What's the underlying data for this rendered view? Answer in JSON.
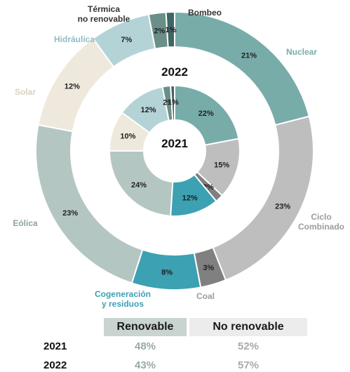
{
  "chart_data": {
    "type": "donut",
    "rings": [
      {
        "year": "2022",
        "ring": "outer",
        "slices": [
          {
            "label": "Nuclear",
            "value": 21,
            "value_label": "21%",
            "color": "#78aca9",
            "label_color": "#78aca9"
          },
          {
            "label": "Ciclo Combinado",
            "value": 23,
            "value_label": "23%",
            "color": "#bebebe",
            "label_color": "#9c9c9c"
          },
          {
            "label": "Coal",
            "value": 3,
            "value_label": "3%",
            "color": "#808080",
            "label_color": "#9c9c9c"
          },
          {
            "label": "Cogeneración y residuos",
            "value": 8,
            "value_label": "8%",
            "color": "#3ba1b3",
            "label_color": "#3ba1b3"
          },
          {
            "label": "Eólica",
            "value": 23,
            "value_label": "23%",
            "color": "#b4c6c2",
            "label_color": "#8ba49e"
          },
          {
            "label": "Solar",
            "value": 12,
            "value_label": "12%",
            "color": "#eee9dc",
            "label_color": "#d9d2bd"
          },
          {
            "label": "Hidráulica",
            "value": 7,
            "value_label": "7%",
            "color": "#b4d3d7",
            "label_color": "#8fbcc3"
          },
          {
            "label": "Térmica no renovable",
            "value": 2,
            "value_label": "2%",
            "color": "#6a8f88",
            "label_color": "#333333"
          },
          {
            "label": "Bombeo",
            "value": 1,
            "value_label": "1%",
            "color": "#3f6666",
            "label_color": "#333333"
          }
        ]
      },
      {
        "year": "2021",
        "ring": "inner",
        "slices": [
          {
            "label": "Nuclear",
            "value": 22,
            "value_label": "22%",
            "color": "#78aca9"
          },
          {
            "label": "Ciclo Combinado",
            "value": 15,
            "value_label": "15%",
            "color": "#bebebe"
          },
          {
            "label": "Coal",
            "value": 2,
            "value_label": "2%",
            "color": "#808080"
          },
          {
            "label": "Cogeneración y residuos",
            "value": 12,
            "value_label": "12%",
            "color": "#3ba1b3"
          },
          {
            "label": "Eólica",
            "value": 24,
            "value_label": "24%",
            "color": "#b4c6c2"
          },
          {
            "label": "Solar",
            "value": 10,
            "value_label": "10%",
            "color": "#eee9dc"
          },
          {
            "label": "Hidráulica",
            "value": 12,
            "value_label": "12%",
            "color": "#b4d3d7"
          },
          {
            "label": "Térmica no renovable",
            "value": 2,
            "value_label": "2%",
            "color": "#6a8f88"
          },
          {
            "label": "Bombeo",
            "value": 1,
            "value_label": "1%",
            "color": "#3f6666"
          }
        ]
      }
    ]
  },
  "summary": {
    "headers": [
      "Renovable",
      "No renovable"
    ],
    "rows": [
      {
        "year": "2021",
        "renovable": "48%",
        "no_renovable": "52%"
      },
      {
        "year": "2022",
        "renovable": "43%",
        "no_renovable": "57%"
      }
    ]
  }
}
